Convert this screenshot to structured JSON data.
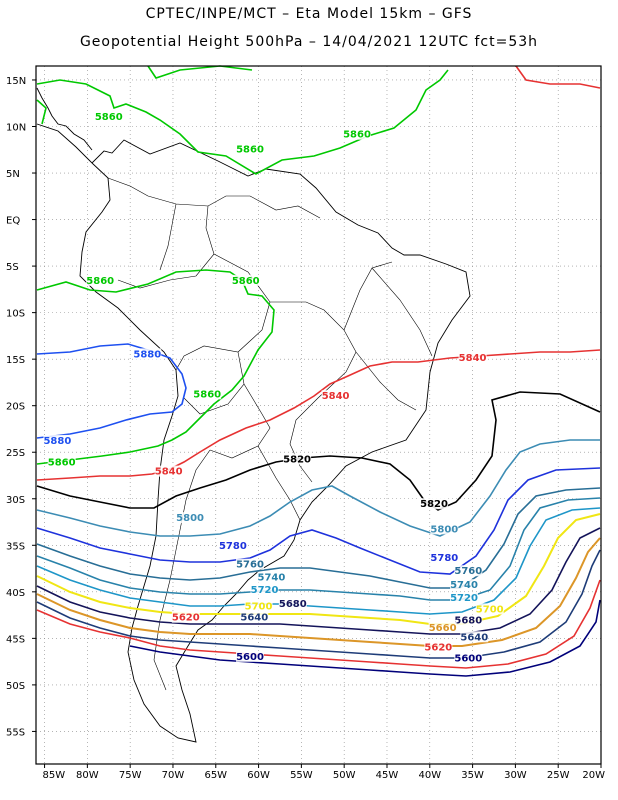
{
  "titles": {
    "line1": "CPTEC/INPE/MCT –  Eta Model 15km – GFS",
    "line2": "Geopotential Height 500hPa – 14/04/2021 12UTC fct=53h"
  },
  "axes": {
    "lat_ticks": [
      "15N",
      "10N",
      "5N",
      "EQ",
      "5S",
      "10S",
      "15S",
      "20S",
      "25S",
      "30S",
      "35S",
      "40S",
      "45S",
      "50S",
      "55S"
    ],
    "lon_ticks": [
      "85W",
      "80W",
      "75W",
      "70W",
      "65W",
      "60W",
      "55W",
      "50W",
      "45W",
      "40W",
      "35W",
      "30W",
      "25W",
      "20W"
    ],
    "lat_range": [
      16.5,
      -58.5
    ],
    "lon_range": [
      -86,
      -20
    ],
    "grid": "dotted"
  },
  "contour_colors": {
    "5600": "#00007a",
    "5620": "#e63232",
    "5640": "#1e3c78",
    "5660": "#dc9628",
    "5680": "#14145a",
    "5700": "#f0e614",
    "5720": "#1e96c8",
    "5740": "#2882aa",
    "5760": "#286e96",
    "5780": "#1e32dc",
    "5800": "#3c8cb4",
    "5820": "#000000",
    "5840": "#e63232",
    "5860": "#00c800",
    "5880": "#1e50f0"
  },
  "contour_labels": [
    {
      "text": "5860",
      "lon": -77.5,
      "lat": 10.8,
      "color": "#00c800"
    },
    {
      "text": "5860",
      "lon": -61.0,
      "lat": 7.3,
      "color": "#00c800"
    },
    {
      "text": "5860",
      "lon": -48.5,
      "lat": 8.9,
      "color": "#00c800"
    },
    {
      "text": "5860",
      "lon": -78.5,
      "lat": -6.8,
      "color": "#00c800"
    },
    {
      "text": "5860",
      "lon": -61.5,
      "lat": -6.8,
      "color": "#00c800"
    },
    {
      "text": "5860",
      "lon": -66.0,
      "lat": -19.0,
      "color": "#00c800"
    },
    {
      "text": "5860",
      "lon": -83.0,
      "lat": -26.3,
      "color": "#00c800"
    },
    {
      "text": "5880",
      "lon": -73.0,
      "lat": -14.7,
      "color": "#1e50f0"
    },
    {
      "text": "5880",
      "lon": -83.5,
      "lat": -24.0,
      "color": "#1e50f0"
    },
    {
      "text": "5840",
      "lon": -51.0,
      "lat": -19.2,
      "color": "#e63232"
    },
    {
      "text": "5840",
      "lon": -70.5,
      "lat": -27.3,
      "color": "#e63232"
    },
    {
      "text": "5840",
      "lon": -35.0,
      "lat": -15.1,
      "color": "#e63232"
    },
    {
      "text": "5820",
      "lon": -55.5,
      "lat": -26.0,
      "color": "#000000"
    },
    {
      "text": "5820",
      "lon": -39.5,
      "lat": -30.8,
      "color": "#000000"
    },
    {
      "text": "5800",
      "lon": -68.0,
      "lat": -32.3,
      "color": "#3c8cb4"
    },
    {
      "text": "5800",
      "lon": -38.3,
      "lat": -33.5,
      "color": "#3c8cb4"
    },
    {
      "text": "5780",
      "lon": -63.0,
      "lat": -35.3,
      "color": "#1e32dc"
    },
    {
      "text": "5780",
      "lon": -38.3,
      "lat": -36.6,
      "color": "#1e32dc"
    },
    {
      "text": "5760",
      "lon": -61.0,
      "lat": -37.3,
      "color": "#286e96"
    },
    {
      "text": "5760",
      "lon": -35.5,
      "lat": -38.0,
      "color": "#286e96"
    },
    {
      "text": "5740",
      "lon": -58.5,
      "lat": -38.7,
      "color": "#2882aa"
    },
    {
      "text": "5740",
      "lon": -36.0,
      "lat": -39.5,
      "color": "#2882aa"
    },
    {
      "text": "5720",
      "lon": -59.3,
      "lat": -40.0,
      "color": "#1e96c8"
    },
    {
      "text": "5720",
      "lon": -36.0,
      "lat": -40.9,
      "color": "#1e96c8"
    },
    {
      "text": "5700",
      "lon": -60.0,
      "lat": -41.8,
      "color": "#f0e614"
    },
    {
      "text": "5700",
      "lon": -33.0,
      "lat": -42.1,
      "color": "#f0e614"
    },
    {
      "text": "5680",
      "lon": -56.0,
      "lat": -41.5,
      "color": "#14145a"
    },
    {
      "text": "5680",
      "lon": -35.5,
      "lat": -43.3,
      "color": "#14145a"
    },
    {
      "text": "5660",
      "lon": -38.5,
      "lat": -44.1,
      "color": "#dc9628"
    },
    {
      "text": "5640",
      "lon": -60.5,
      "lat": -43.0,
      "color": "#1e3c78"
    },
    {
      "text": "5640",
      "lon": -34.8,
      "lat": -45.1,
      "color": "#1e3c78"
    },
    {
      "text": "5620",
      "lon": -68.5,
      "lat": -43.0,
      "color": "#e63232"
    },
    {
      "text": "5620",
      "lon": -39.0,
      "lat": -46.2,
      "color": "#e63232"
    },
    {
      "text": "5600",
      "lon": -61.0,
      "lat": -47.2,
      "color": "#00007a"
    },
    {
      "text": "5600",
      "lon": -35.5,
      "lat": -47.4,
      "color": "#00007a"
    }
  ]
}
